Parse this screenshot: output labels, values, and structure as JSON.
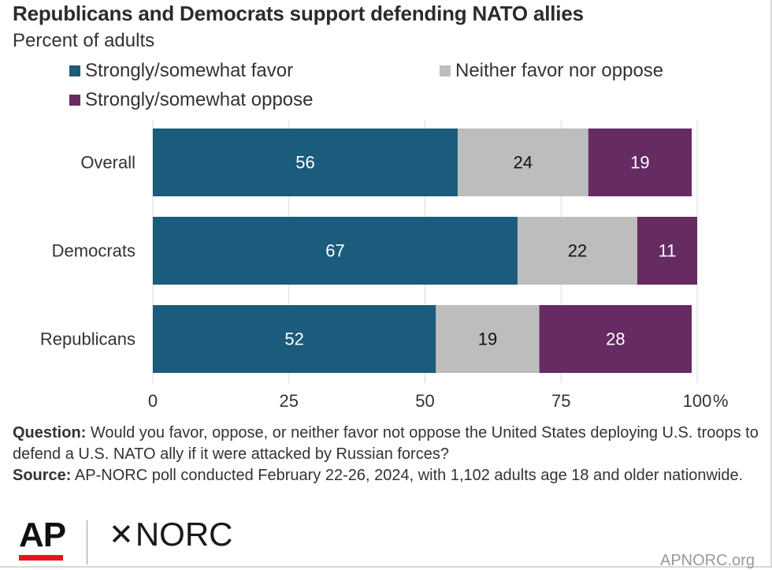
{
  "header": {
    "title": "Republicans and Democrats support defending NATO allies",
    "subtitle": "Percent of adults"
  },
  "chart_data": {
    "type": "bar",
    "orientation": "horizontal",
    "stacked": true,
    "categories": [
      "Overall",
      "Democrats",
      "Republicans"
    ],
    "series": [
      {
        "name": "Strongly/somewhat favor",
        "values": [
          56,
          67,
          52
        ],
        "color": "#1b5b7c"
      },
      {
        "name": "Neither favor nor oppose",
        "values": [
          24,
          22,
          19
        ],
        "color": "#bdbdbd"
      },
      {
        "name": "Strongly/somewhat oppose",
        "values": [
          19,
          11,
          28
        ],
        "color": "#652b62"
      }
    ],
    "x_ticks": [
      "0",
      "25",
      "50",
      "75",
      "100"
    ],
    "x_unit": "%",
    "xlim": [
      0,
      100
    ],
    "grid": true,
    "legend_position": "top"
  },
  "footnote": {
    "question_label": "Question:",
    "question_text": "Would you favor, oppose, or neither favor not oppose the United States deploying U.S. troops to defend a U.S. NATO ally if it were attacked by Russian forces?",
    "source_label": "Source:",
    "source_text": "AP-NORC poll conducted February 22-26, 2024, with 1,102 adults age 18 and older nationwide."
  },
  "branding": {
    "ap_logo_text": "AP",
    "norc_logo_mark": "✕",
    "norc_logo_text": "NORC",
    "site_text": "APNORC.org"
  }
}
